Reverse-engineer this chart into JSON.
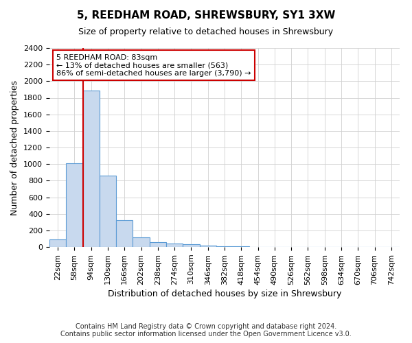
{
  "title": "5, REEDHAM ROAD, SHREWSBURY, SY1 3XW",
  "subtitle": "Size of property relative to detached houses in Shrewsbury",
  "xlabel": "Distribution of detached houses by size in Shrewsbury",
  "ylabel": "Number of detached properties",
  "bar_labels": [
    "22sqm",
    "58sqm",
    "94sqm",
    "130sqm",
    "166sqm",
    "202sqm",
    "238sqm",
    "274sqm",
    "310sqm",
    "346sqm",
    "382sqm",
    "418sqm",
    "454sqm",
    "490sqm",
    "526sqm",
    "562sqm",
    "598sqm",
    "634sqm",
    "670sqm",
    "706sqm",
    "742sqm"
  ],
  "bar_values": [
    90,
    1010,
    1890,
    860,
    320,
    115,
    55,
    40,
    30,
    15,
    5,
    5,
    0,
    0,
    0,
    0,
    0,
    0,
    0,
    0,
    0
  ],
  "bar_color": "#c8d9ee",
  "bar_edge_color": "#5b9bd5",
  "red_line_x": 2,
  "annotation_line1": "5 REEDHAM ROAD: 83sqm",
  "annotation_line2": "← 13% of detached houses are smaller (563)",
  "annotation_line3": "86% of semi-detached houses are larger (3,790) →",
  "annotation_box_color": "#ffffff",
  "annotation_box_edge": "#cc0000",
  "red_line_color": "#cc0000",
  "ylim": [
    0,
    2400
  ],
  "yticks": [
    0,
    200,
    400,
    600,
    800,
    1000,
    1200,
    1400,
    1600,
    1800,
    2000,
    2200,
    2400
  ],
  "footer1": "Contains HM Land Registry data © Crown copyright and database right 2024.",
  "footer2": "Contains public sector information licensed under the Open Government Licence v3.0.",
  "grid_color": "#d0d0d0",
  "background_color": "#ffffff",
  "title_fontsize": 11,
  "subtitle_fontsize": 9,
  "axis_label_fontsize": 9,
  "tick_fontsize": 8,
  "footer_fontsize": 7
}
